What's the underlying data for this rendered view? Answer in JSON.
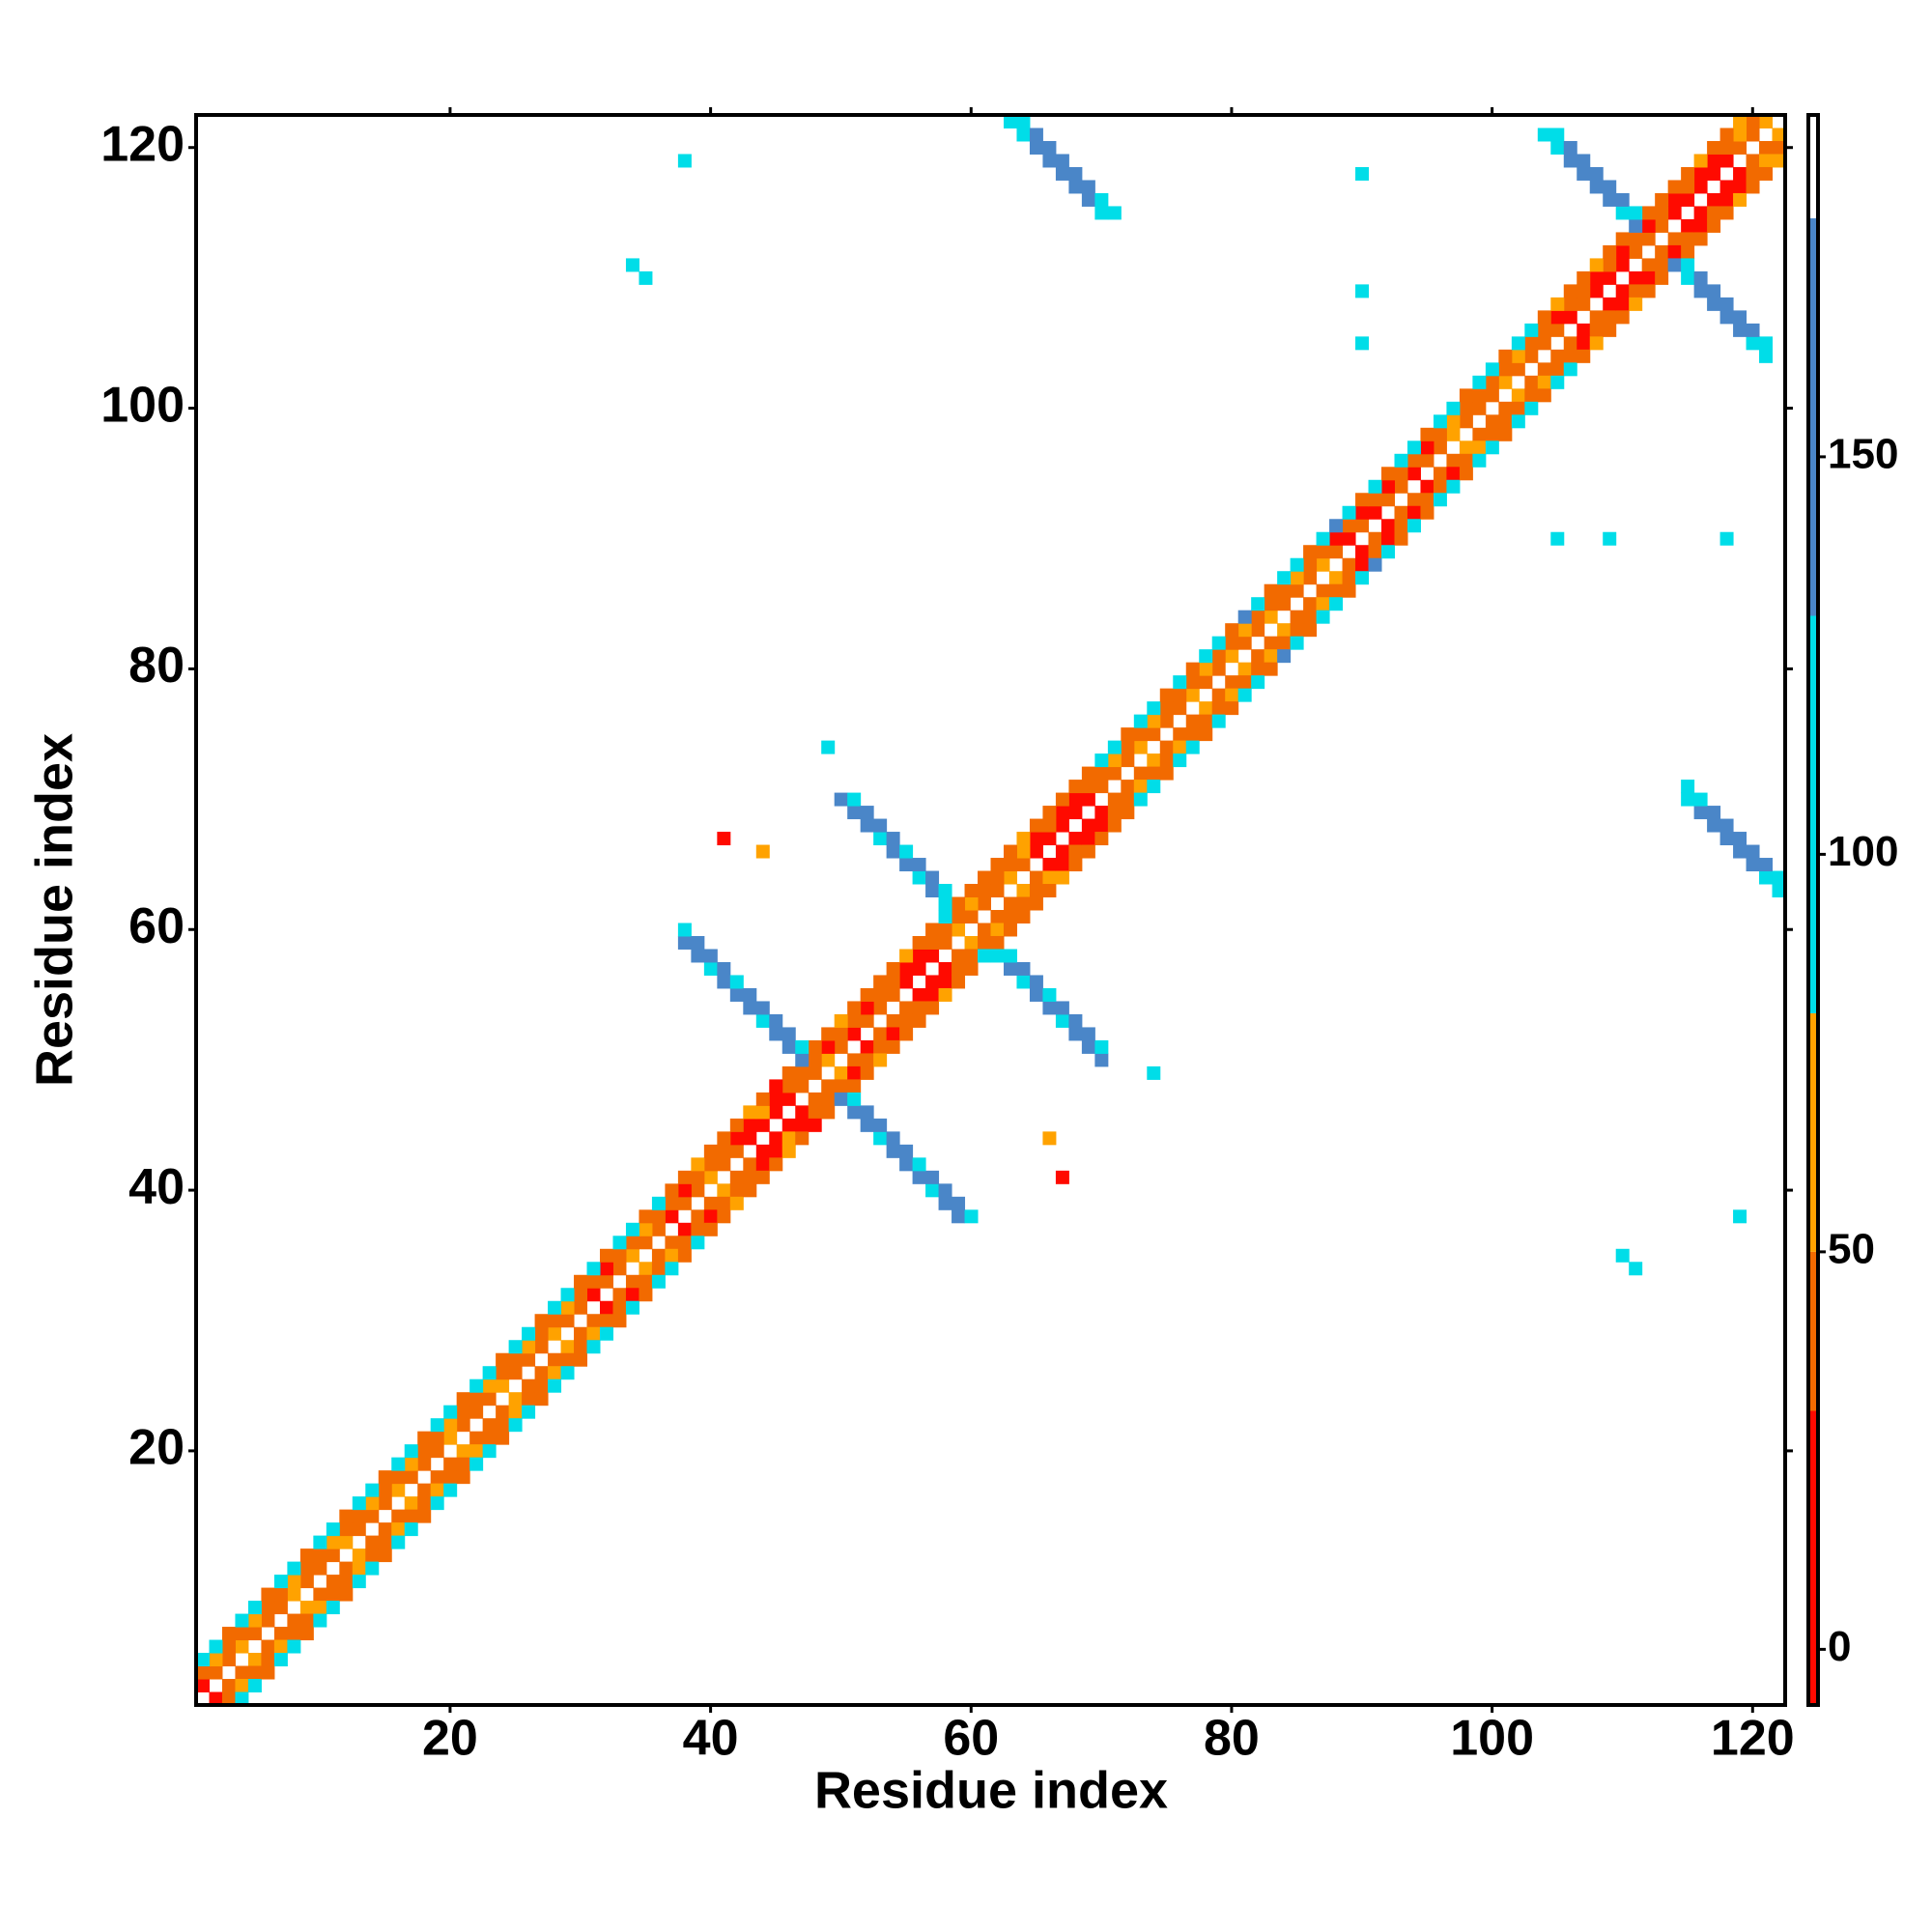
{
  "chart_data": {
    "type": "heatmap",
    "x_label": "Residue index",
    "y_label": "Residue index",
    "xlim": [
      0.5,
      122.5
    ],
    "ylim": [
      0.5,
      122.5
    ],
    "xticks": [
      20,
      40,
      60,
      80,
      100,
      120
    ],
    "yticks": [
      20,
      40,
      60,
      80,
      100,
      120
    ],
    "zlim": [
      -7,
      193
    ],
    "zticks": [
      0,
      50,
      100,
      150
    ],
    "color_bins": [
      -7,
      30,
      50,
      80,
      130,
      180,
      193
    ],
    "colors": [
      "#ff0a00",
      "#f26a00",
      "#ffa200",
      "#00dde8",
      "#4a86c8",
      "#ffffff"
    ],
    "symmetric": true,
    "x": [
      1,
      2,
      3,
      4,
      5,
      6,
      7,
      8,
      9,
      10,
      11,
      12,
      13,
      14,
      15,
      16,
      17,
      18,
      19,
      20,
      21,
      22,
      23,
      24,
      25,
      26,
      27,
      28,
      29,
      30,
      31,
      32,
      33,
      34,
      35,
      36,
      37,
      38,
      39,
      40,
      41,
      42,
      43,
      44,
      45,
      46,
      47,
      48,
      49,
      50,
      51,
      52,
      53,
      54,
      55,
      56,
      57,
      58,
      59,
      60,
      61,
      62,
      63,
      64,
      65,
      66,
      67,
      68,
      69,
      70,
      71,
      72,
      73,
      74,
      75,
      76,
      77,
      78,
      79,
      80,
      81,
      82,
      83,
      84,
      85,
      86,
      87,
      88,
      89,
      90,
      91,
      92,
      93,
      94,
      95,
      96,
      97,
      98,
      99,
      100,
      101,
      102,
      103,
      104,
      105,
      106,
      107,
      108,
      109,
      110,
      111,
      112,
      113,
      114,
      115,
      116,
      117,
      118,
      119,
      120,
      121,
      1,
      2,
      3,
      4,
      5,
      6,
      7,
      8,
      9,
      10,
      11,
      12,
      13,
      14,
      15,
      16,
      17,
      18,
      19,
      20,
      21,
      22,
      23,
      24,
      25,
      26,
      27,
      28,
      29,
      30,
      31,
      32,
      33,
      34,
      35,
      36,
      37,
      38,
      39,
      40,
      41,
      42,
      43,
      44,
      45,
      46,
      47,
      48,
      49,
      50,
      51,
      52,
      53,
      54,
      55,
      56,
      57,
      58,
      59,
      60,
      61,
      62,
      63,
      64,
      65,
      66,
      67,
      68,
      69,
      70,
      71,
      72,
      73,
      74,
      75,
      76,
      77,
      78,
      79,
      80,
      81,
      82,
      83,
      84,
      85,
      86,
      87,
      88,
      89,
      90,
      91,
      92,
      93,
      94,
      95,
      96,
      97,
      98,
      99,
      100,
      101,
      102,
      103,
      104,
      105,
      106,
      107,
      108,
      109,
      110,
      111,
      112,
      113,
      114,
      115,
      116,
      117,
      118,
      119,
      120,
      1,
      2,
      3,
      4,
      5,
      6,
      7,
      8,
      9,
      10,
      11,
      12,
      13,
      14,
      15,
      16,
      17,
      18,
      19,
      20,
      21,
      22,
      23,
      24,
      25,
      26,
      27,
      28,
      29,
      30,
      31,
      32,
      33,
      34,
      35,
      36,
      37,
      38,
      39,
      40,
      41,
      42,
      43,
      44,
      45,
      46,
      47,
      48,
      49,
      50,
      51,
      52,
      53,
      54,
      55,
      56,
      57,
      58,
      59,
      60,
      61,
      62,
      63,
      64,
      65,
      66,
      67,
      68,
      69,
      70,
      71,
      72,
      73,
      74,
      75,
      76,
      77,
      78,
      79,
      80,
      81,
      82,
      83,
      84,
      85,
      86,
      87,
      88,
      89,
      90,
      91,
      92,
      93,
      94,
      95,
      96,
      97,
      98,
      99,
      100,
      101,
      102,
      103,
      104,
      105,
      106,
      107,
      108,
      109,
      110,
      111,
      112,
      113,
      114,
      115,
      116,
      117,
      118,
      119,
      38,
      39,
      40,
      41,
      42,
      43,
      44,
      45,
      46,
      38,
      39,
      40,
      41,
      42,
      43,
      44,
      45,
      46,
      47,
      50,
      51,
      52,
      53,
      54,
      55,
      56,
      57,
      58,
      51,
      52,
      53,
      54,
      55,
      56,
      57,
      58,
      63,
      64,
      65,
      66,
      67,
      68,
      69,
      70,
      64,
      65,
      66,
      67,
      68,
      69,
      70,
      71,
      104,
      105,
      106,
      107,
      108,
      109,
      110,
      105,
      106,
      107,
      108,
      109,
      110,
      111,
      38,
      90,
      34,
      35,
      90,
      90,
      49,
      44,
      41
    ],
    "y": [
      2,
      3,
      4,
      5,
      6,
      7,
      8,
      9,
      10,
      11,
      12,
      13,
      14,
      15,
      16,
      17,
      18,
      19,
      20,
      21,
      22,
      23,
      24,
      25,
      26,
      27,
      28,
      29,
      30,
      31,
      32,
      33,
      34,
      35,
      36,
      37,
      38,
      39,
      40,
      41,
      42,
      43,
      44,
      45,
      46,
      47,
      48,
      49,
      50,
      51,
      52,
      53,
      54,
      55,
      56,
      57,
      58,
      59,
      60,
      61,
      62,
      63,
      64,
      65,
      66,
      67,
      68,
      69,
      70,
      71,
      72,
      73,
      74,
      75,
      76,
      77,
      78,
      79,
      80,
      81,
      82,
      83,
      84,
      85,
      86,
      87,
      88,
      89,
      90,
      91,
      92,
      93,
      94,
      95,
      96,
      97,
      98,
      99,
      100,
      101,
      102,
      103,
      104,
      105,
      106,
      107,
      108,
      109,
      110,
      111,
      112,
      113,
      114,
      115,
      116,
      117,
      118,
      119,
      120,
      121,
      122,
      3,
      4,
      5,
      6,
      7,
      8,
      9,
      10,
      11,
      12,
      13,
      14,
      15,
      16,
      17,
      18,
      19,
      20,
      21,
      22,
      23,
      24,
      25,
      26,
      27,
      28,
      29,
      30,
      31,
      32,
      33,
      34,
      35,
      36,
      37,
      38,
      39,
      40,
      41,
      42,
      43,
      44,
      45,
      46,
      47,
      48,
      49,
      50,
      51,
      52,
      53,
      54,
      55,
      56,
      57,
      58,
      59,
      60,
      61,
      62,
      63,
      64,
      65,
      66,
      67,
      68,
      69,
      70,
      71,
      72,
      73,
      74,
      75,
      76,
      77,
      78,
      79,
      80,
      81,
      82,
      83,
      84,
      85,
      86,
      87,
      88,
      89,
      90,
      91,
      92,
      93,
      94,
      95,
      96,
      97,
      98,
      99,
      100,
      101,
      102,
      103,
      104,
      105,
      106,
      107,
      108,
      109,
      110,
      111,
      112,
      113,
      114,
      115,
      116,
      117,
      118,
      119,
      120,
      121,
      122,
      4,
      5,
      6,
      7,
      8,
      9,
      10,
      11,
      12,
      13,
      14,
      15,
      16,
      17,
      18,
      19,
      20,
      21,
      22,
      23,
      24,
      25,
      26,
      27,
      28,
      29,
      30,
      31,
      32,
      33,
      34,
      35,
      36,
      37,
      38,
      39,
      40,
      41,
      42,
      43,
      44,
      45,
      46,
      47,
      48,
      49,
      50,
      51,
      52,
      53,
      54,
      55,
      56,
      57,
      58,
      59,
      60,
      61,
      62,
      63,
      64,
      65,
      66,
      67,
      68,
      69,
      70,
      71,
      72,
      73,
      74,
      75,
      76,
      77,
      78,
      79,
      80,
      81,
      82,
      83,
      84,
      85,
      86,
      87,
      88,
      89,
      90,
      91,
      92,
      93,
      94,
      95,
      96,
      97,
      98,
      99,
      100,
      101,
      102,
      103,
      104,
      105,
      106,
      107,
      108,
      109,
      110,
      111,
      112,
      113,
      114,
      115,
      116,
      117,
      118,
      119,
      120,
      121,
      122,
      59,
      58,
      57,
      56,
      55,
      54,
      53,
      52,
      51,
      60,
      59,
      58,
      57,
      56,
      55,
      54,
      53,
      52,
      51,
      70,
      69,
      68,
      67,
      66,
      65,
      64,
      63,
      62,
      70,
      69,
      68,
      67,
      66,
      65,
      64,
      63,
      122,
      121,
      120,
      119,
      118,
      117,
      116,
      115,
      122,
      121,
      120,
      119,
      118,
      117,
      116,
      115,
      121,
      120,
      119,
      118,
      117,
      116,
      115,
      121,
      120,
      119,
      118,
      117,
      116,
      115,
      119,
      118,
      111,
      110,
      109,
      105,
      74,
      66,
      67
    ],
    "values": [
      20,
      35,
      35,
      60,
      35,
      35,
      35,
      60,
      35,
      35,
      35,
      60,
      35,
      35,
      35,
      60,
      35,
      35,
      35,
      60,
      35,
      35,
      35,
      60,
      35,
      35,
      35,
      60,
      35,
      35,
      15,
      35,
      35,
      60,
      35,
      35,
      15,
      35,
      35,
      60,
      35,
      35,
      15,
      15,
      15,
      15,
      35,
      35,
      60,
      35,
      15,
      35,
      35,
      35,
      15,
      15,
      15,
      35,
      60,
      35,
      35,
      35,
      60,
      35,
      15,
      15,
      15,
      15,
      15,
      35,
      35,
      35,
      60,
      35,
      35,
      35,
      60,
      35,
      35,
      60,
      35,
      35,
      60,
      35,
      35,
      35,
      60,
      35,
      15,
      35,
      15,
      35,
      35,
      15,
      35,
      35,
      60,
      35,
      35,
      35,
      60,
      35,
      35,
      35,
      35,
      15,
      35,
      15,
      15,
      15,
      35,
      35,
      35,
      15,
      15,
      15,
      15,
      15,
      35,
      35,
      60,
      35,
      60,
      35,
      35,
      60,
      35,
      35,
      60,
      35,
      35,
      60,
      35,
      35,
      60,
      35,
      35,
      60,
      35,
      35,
      60,
      35,
      35,
      60,
      35,
      35,
      60,
      35,
      35,
      60,
      35,
      35,
      15,
      35,
      35,
      60,
      35,
      35,
      15,
      35,
      35,
      35,
      15,
      15,
      60,
      15,
      35,
      35,
      35,
      15,
      35,
      35,
      15,
      35,
      35,
      15,
      15,
      35,
      35,
      35,
      60,
      35,
      35,
      35,
      60,
      15,
      35,
      15,
      15,
      35,
      35,
      60,
      35,
      35,
      60,
      35,
      35,
      35,
      60,
      35,
      35,
      60,
      35,
      35,
      35,
      60,
      35,
      35,
      15,
      35,
      15,
      35,
      15,
      35,
      35,
      15,
      35,
      60,
      35,
      35,
      35,
      35,
      60,
      35,
      35,
      15,
      35,
      35,
      15,
      35,
      15,
      35,
      15,
      35,
      15,
      35,
      15,
      15,
      35,
      60,
      35,
      100,
      100,
      35,
      100,
      100,
      35,
      100,
      100,
      35,
      100,
      100,
      35,
      100,
      100,
      35,
      100,
      100,
      35,
      100,
      100,
      35,
      100,
      100,
      35,
      100,
      100,
      35,
      100,
      100,
      35,
      100,
      35,
      100,
      100,
      35,
      100,
      35,
      35,
      60,
      35,
      35,
      35,
      60,
      35,
      15,
      35,
      140,
      35,
      35,
      60,
      35,
      35,
      35,
      35,
      60,
      35,
      35,
      100,
      35,
      35,
      35,
      35,
      35,
      60,
      35,
      35,
      35,
      35,
      35,
      100,
      100,
      35,
      100,
      100,
      35,
      100,
      35,
      100,
      100,
      35,
      140,
      100,
      35,
      100,
      100,
      35,
      100,
      140,
      100,
      35,
      100,
      35,
      100,
      100,
      35,
      100,
      100,
      35,
      100,
      100,
      35,
      100,
      100,
      35,
      60,
      35,
      35,
      60,
      35,
      35,
      140,
      35,
      35,
      35,
      35,
      60,
      35,
      35,
      60,
      140,
      140,
      100,
      140,
      140,
      140,
      100,
      140,
      140,
      100,
      140,
      140,
      140,
      100,
      140,
      140,
      140,
      140,
      100,
      140,
      140,
      140,
      100,
      140,
      140,
      100,
      140,
      100,
      100,
      140,
      140,
      140,
      100,
      140,
      140,
      100,
      100,
      100,
      140,
      140,
      140,
      140,
      140,
      100,
      100,
      140,
      140,
      140,
      140,
      140,
      100,
      100,
      100,
      100,
      140,
      140,
      140,
      140,
      100,
      100,
      140,
      140,
      140,
      140,
      140,
      100,
      100,
      100,
      100,
      100,
      100,
      100,
      100,
      60,
      15
    ]
  }
}
